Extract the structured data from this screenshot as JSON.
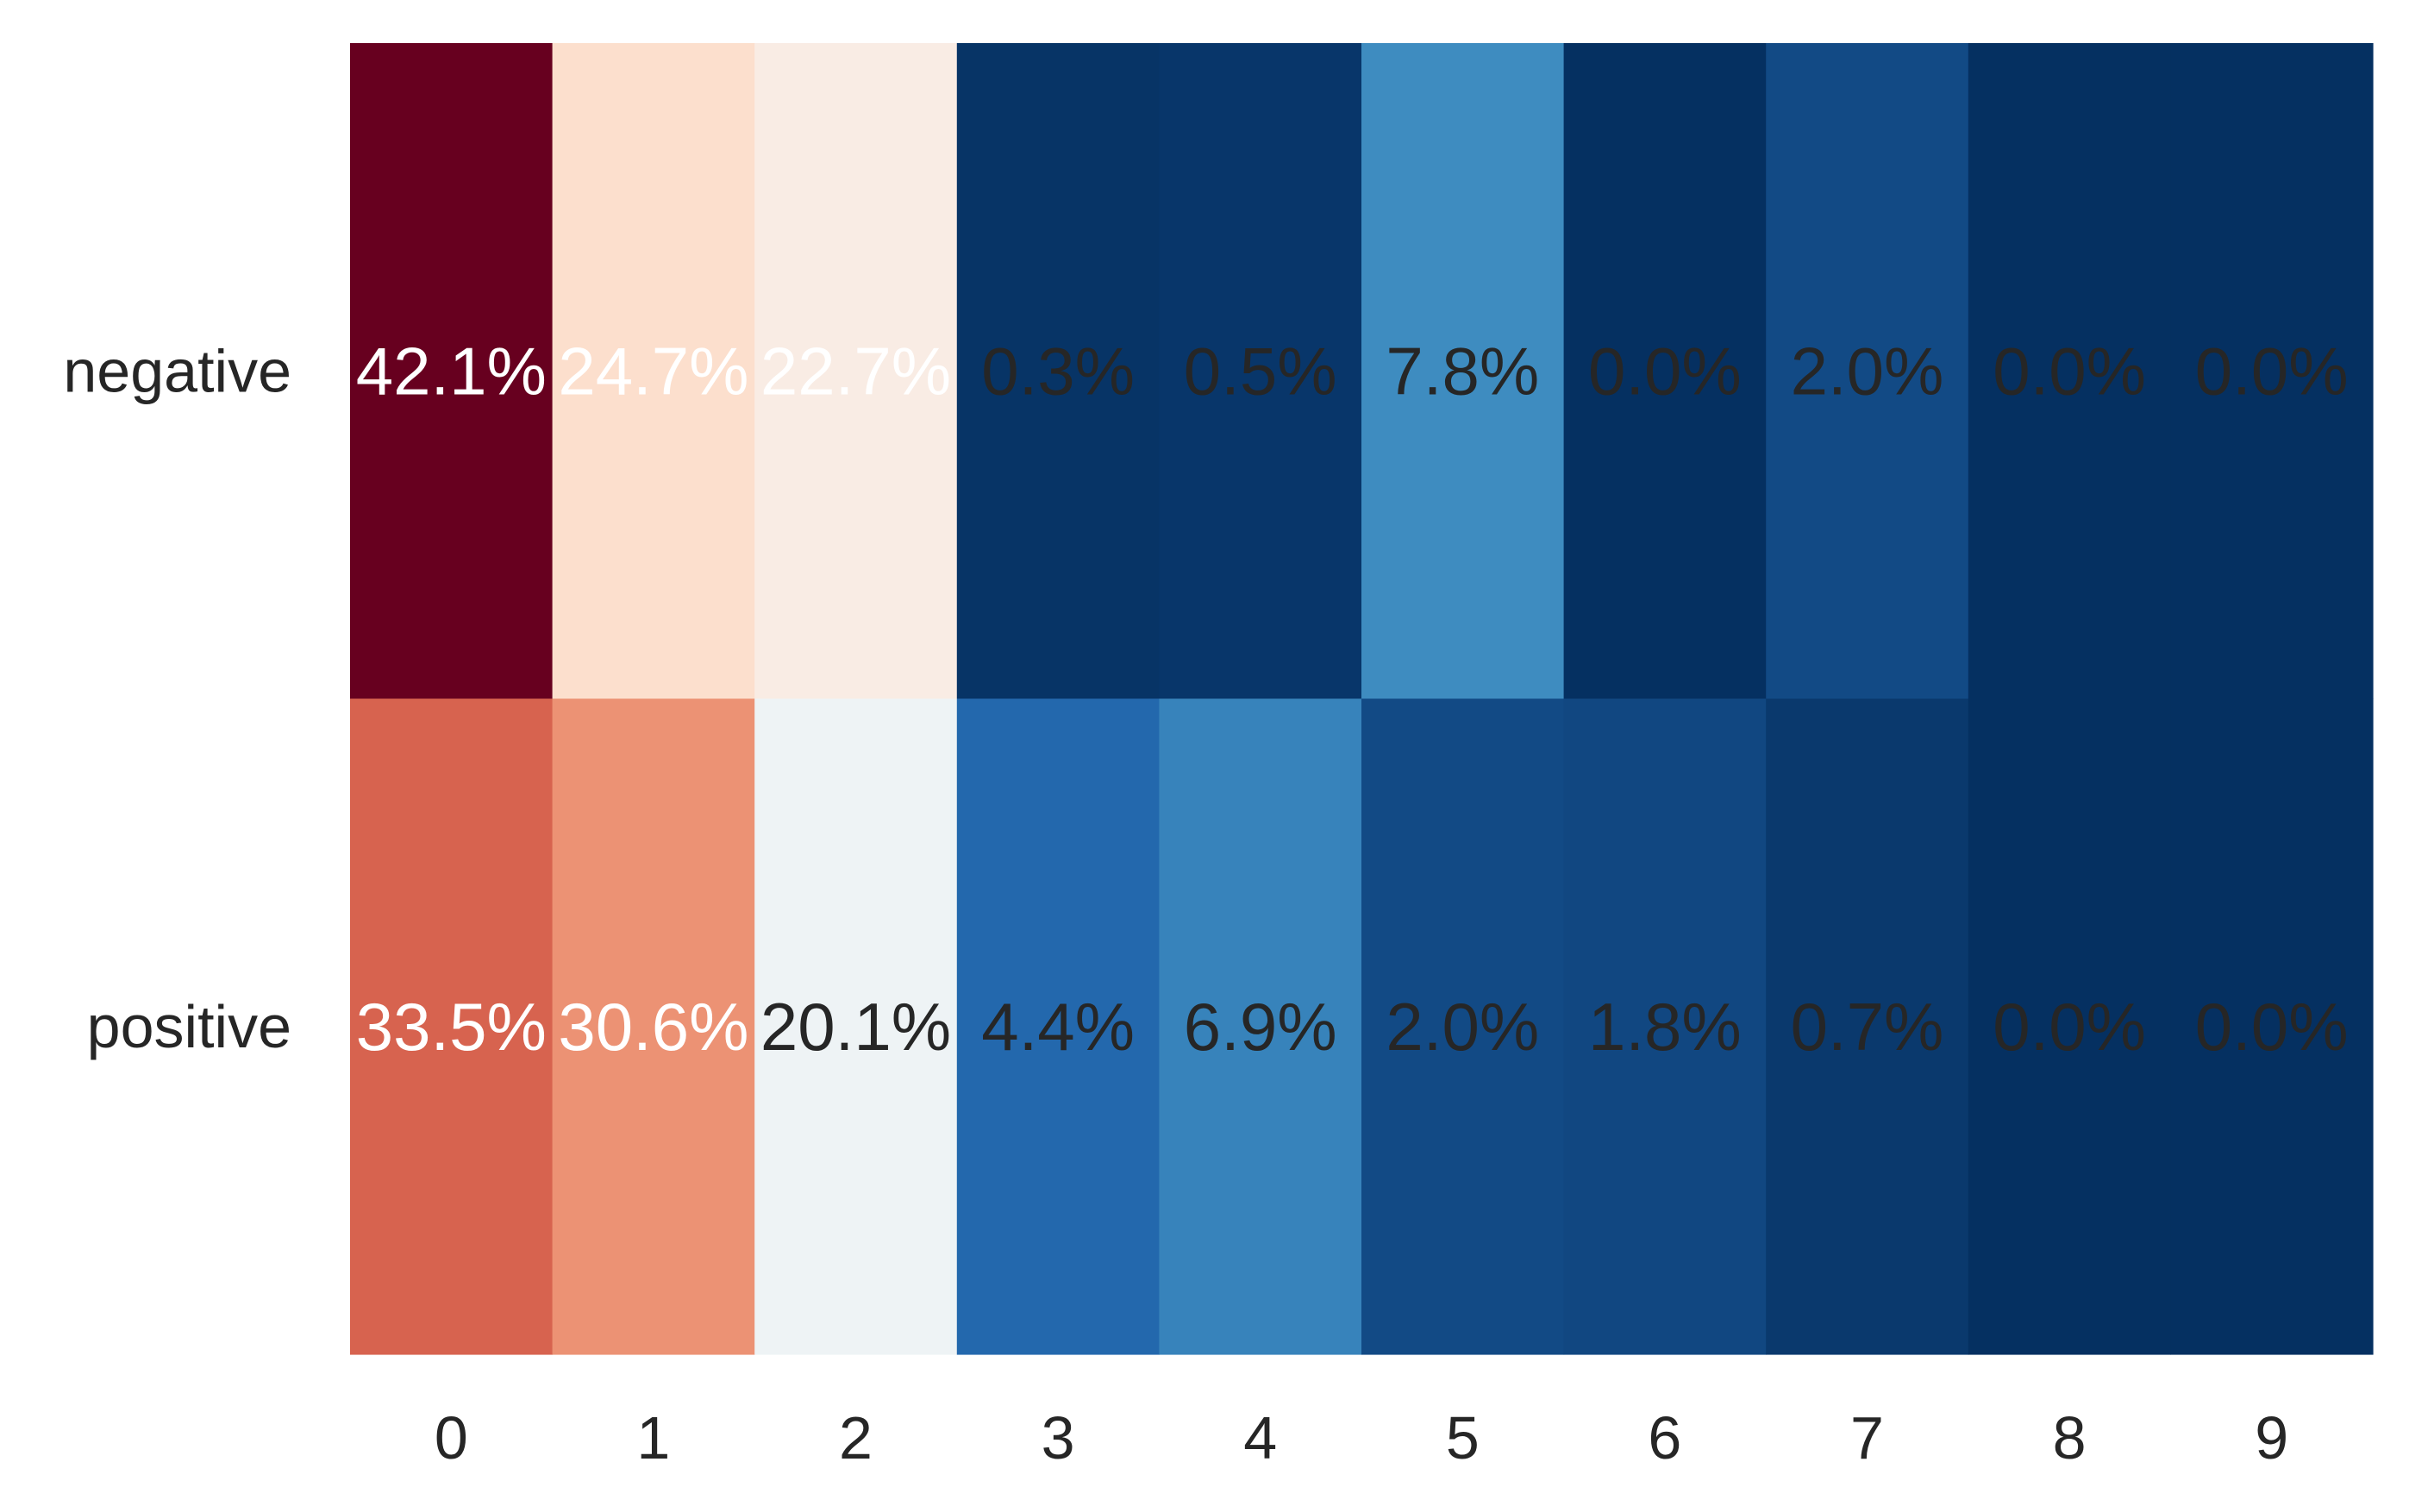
{
  "chart_data": {
    "type": "heatmap",
    "title": "",
    "xlabel": "",
    "ylabel": "",
    "x_categories": [
      "0",
      "1",
      "2",
      "3",
      "4",
      "5",
      "6",
      "7",
      "8",
      "9"
    ],
    "y_categories": [
      "negative",
      "positive"
    ],
    "values": [
      [
        42.1,
        24.7,
        22.7,
        0.3,
        0.5,
        7.8,
        0.0,
        2.0,
        0.0,
        0.0
      ],
      [
        33.5,
        30.6,
        20.1,
        4.4,
        6.9,
        2.0,
        1.8,
        0.7,
        0.0,
        0.0
      ]
    ],
    "value_labels": [
      [
        "42.1%",
        "24.7%",
        "22.7%",
        "0.3%",
        "0.5%",
        "7.8%",
        "0.0%",
        "2.0%",
        "0.0%",
        "0.0%"
      ],
      [
        "33.5%",
        "30.6%",
        "20.1%",
        "4.4%",
        "6.9%",
        "2.0%",
        "1.8%",
        "0.7%",
        "0.0%",
        "0.0%"
      ]
    ],
    "colormap": "RdBu_r",
    "color_range": [
      0,
      42.1
    ],
    "colorbar": false,
    "grid": false
  }
}
